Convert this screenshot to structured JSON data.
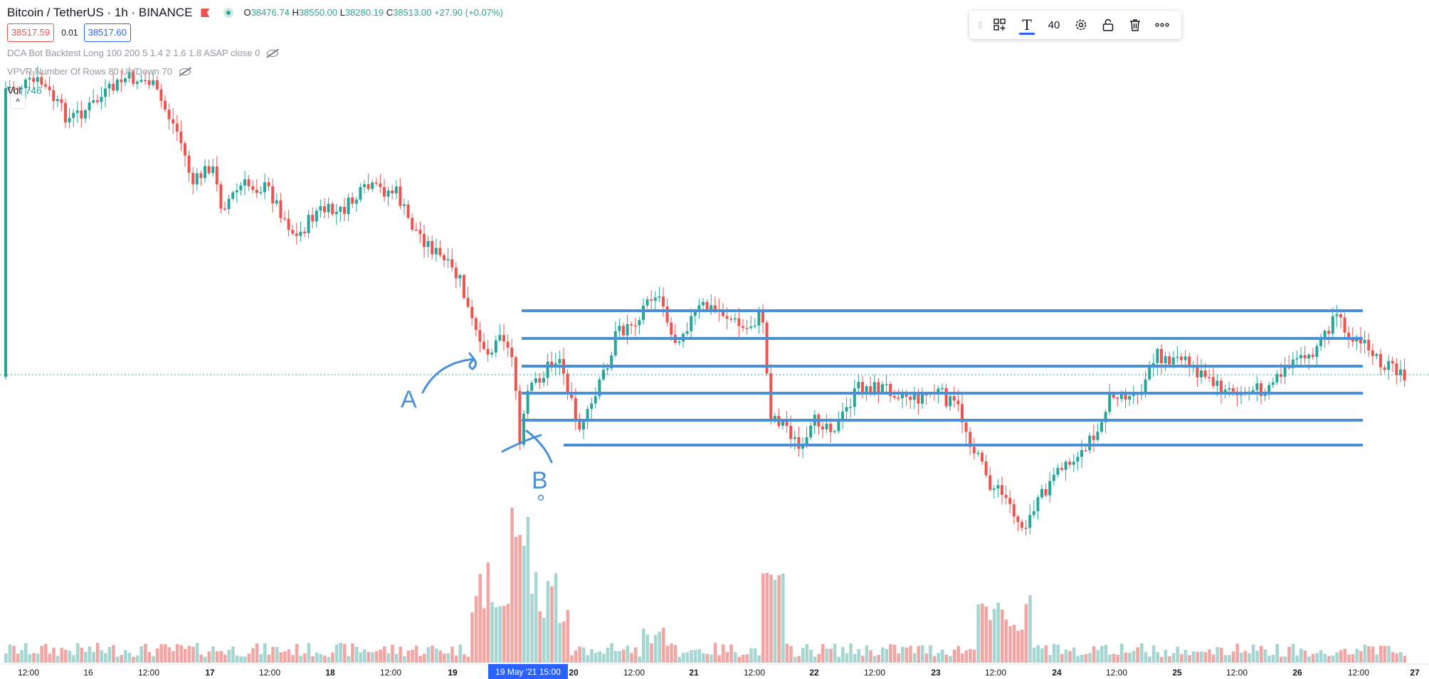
{
  "symbol": {
    "title": "Bitcoin / TetherUS · 1h · BINANCE",
    "ohlc": {
      "o_key": "O",
      "o": "38476.74",
      "h_key": "H",
      "h": "38550.00",
      "l_key": "L",
      "l": "38280.19",
      "c_key": "C",
      "c": "38513.00",
      "change": "+27.90 (+0.07%)"
    }
  },
  "prices": {
    "bid": "38517.59",
    "spread": "0.01",
    "ask": "38517.60"
  },
  "indicators": [
    {
      "label": "DCA Bot Backtest Long 100 200 5 1.4 2 1.6 1.8 ASAP close 0"
    },
    {
      "label": "VPVR Number Of Rows 80 Up/Down 70"
    }
  ],
  "volume": {
    "label": "Vol",
    "value": "746"
  },
  "toolbar": {
    "font_size": "40",
    "text_icon": "T",
    "items": [
      "drag-grip-icon",
      "add-template-icon",
      "text-tool-icon",
      "font-size",
      "settings-icon",
      "lock-icon",
      "delete-icon",
      "more-icon"
    ]
  },
  "annotations": {
    "label_a": "A",
    "label_b": "B"
  },
  "x_axis": {
    "ticks": [
      "12:00",
      "16",
      "12:00",
      "17",
      "12:00",
      "18",
      "12:00",
      "19",
      "20",
      "12:00",
      "21",
      "12:00",
      "22",
      "12:00",
      "23",
      "12:00",
      "24",
      "12:00",
      "25",
      "12:00",
      "26",
      "12:00",
      "27"
    ],
    "crosshair_label": "19 May '21    15:00"
  },
  "colors": {
    "up": "#26a69a",
    "down": "#ef5350",
    "vol_up": "#a6d6d1",
    "vol_down": "#f1a6a4",
    "drawing": "#4a90d9",
    "crosshair_bg": "#2962ff"
  }
}
